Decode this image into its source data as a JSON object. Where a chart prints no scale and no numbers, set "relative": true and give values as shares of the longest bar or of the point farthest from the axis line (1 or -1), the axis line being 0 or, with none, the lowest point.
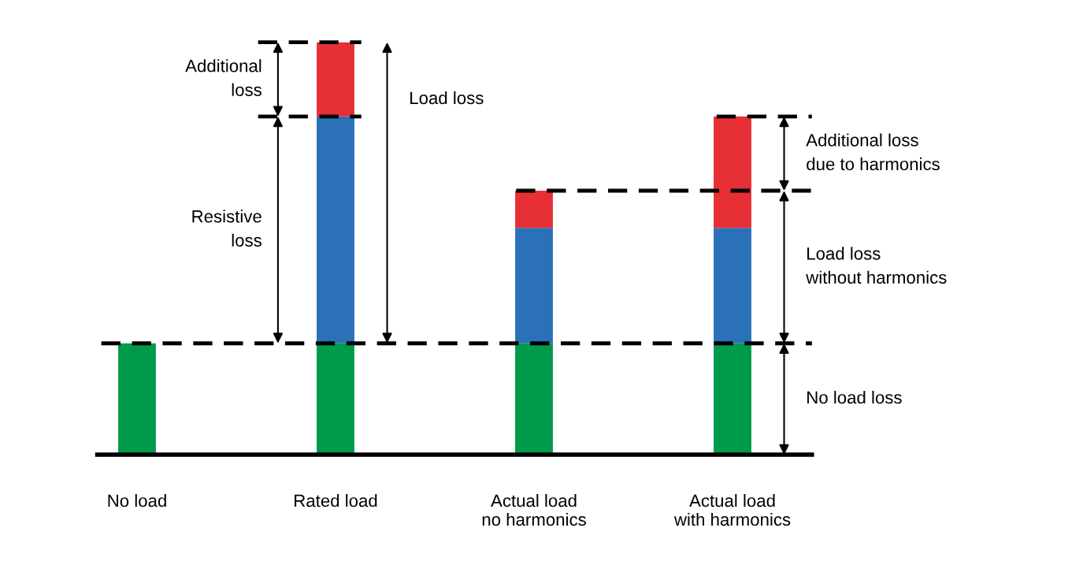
{
  "chart_data": {
    "type": "bar",
    "stacked": true,
    "relative": true,
    "categories": [
      "No load",
      "Rated load",
      "Actual load\nno harmonics",
      "Actual load\nwith harmonics"
    ],
    "series": [
      {
        "color": "#009a4b",
        "values": [
          0.27,
          0.27,
          0.27,
          0.27
        ]
      },
      {
        "color": "#2a71b8",
        "values": [
          null,
          0.55,
          0.28,
          0.28
        ]
      },
      {
        "color": "#e63036",
        "values": [
          null,
          0.18,
          0.09,
          0.27
        ]
      }
    ],
    "ref_lines": [
      {
        "axis": "y",
        "value": 0.27,
        "color": "#000000",
        "line_style": "dashed"
      },
      {
        "axis": "y",
        "value": 0.64,
        "color": "#000000",
        "line_style": "dashed"
      },
      {
        "axis": "y",
        "value": 0.82,
        "color": "#000000",
        "line_style": "dashed"
      },
      {
        "axis": "y",
        "value": 1.0,
        "color": "#000000",
        "line_style": "dashed"
      }
    ],
    "annotations": [
      "Additional\nloss",
      "Resistive\nloss",
      "Load loss",
      "Additional loss\ndue to harmonics",
      "Load loss\nwithout harmonics",
      "No load loss"
    ]
  }
}
